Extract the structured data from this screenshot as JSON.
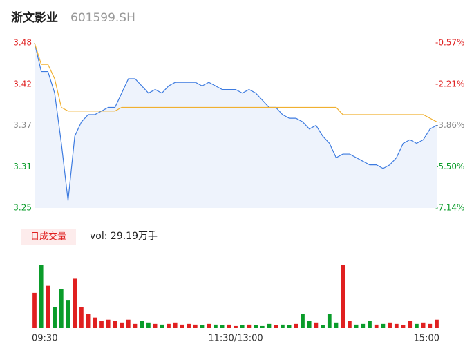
{
  "header": {
    "name": "浙文影业",
    "code": "601599.SH"
  },
  "chart_data": {
    "type": "line",
    "xlim": [
      0,
      240
    ],
    "xticks": [
      {
        "value": 0,
        "label": "09:30"
      },
      {
        "value": 120,
        "label": "11:30/13:00"
      },
      {
        "value": 240,
        "label": "15:00"
      }
    ],
    "ylim": [
      3.25,
      3.48
    ],
    "yticks": [
      {
        "value": 3.48,
        "label": "3.48"
      },
      {
        "value": 3.4225,
        "label": "3.42"
      },
      {
        "value": 3.365,
        "label": "3.37"
      },
      {
        "value": 3.3075,
        "label": "3.31"
      },
      {
        "value": 3.25,
        "label": "3.25"
      }
    ],
    "ytick_colors": [
      "#e02020",
      "#e02020",
      "#888888",
      "#0a9c2a",
      "#0a9c2a"
    ],
    "y2lim": [
      -7.14,
      -0.57
    ],
    "y2ticks": [
      {
        "value": -0.57,
        "label": "-0.57%"
      },
      {
        "value": -2.2125,
        "label": "-2.21%"
      },
      {
        "value": -3.855,
        "label": "-3.86%"
      },
      {
        "value": -5.4975,
        "label": "-5.50%"
      },
      {
        "value": -7.14,
        "label": "-7.14%"
      }
    ],
    "x": [
      0,
      4,
      8,
      12,
      16,
      20,
      24,
      28,
      32,
      36,
      40,
      44,
      48,
      52,
      56,
      60,
      64,
      68,
      72,
      76,
      80,
      84,
      88,
      92,
      96,
      100,
      104,
      108,
      112,
      116,
      120,
      124,
      128,
      132,
      136,
      140,
      144,
      148,
      152,
      156,
      160,
      164,
      168,
      172,
      176,
      180,
      184,
      188,
      192,
      196,
      200,
      204,
      208,
      212,
      216,
      220,
      224,
      228,
      232,
      236,
      240
    ],
    "series": [
      {
        "name": "price",
        "color": "#3d7be0",
        "values": [
          3.48,
          3.44,
          3.44,
          3.41,
          3.34,
          3.26,
          3.35,
          3.37,
          3.38,
          3.38,
          3.385,
          3.39,
          3.39,
          3.41,
          3.43,
          3.43,
          3.42,
          3.41,
          3.415,
          3.41,
          3.42,
          3.425,
          3.425,
          3.425,
          3.425,
          3.42,
          3.425,
          3.42,
          3.415,
          3.415,
          3.415,
          3.41,
          3.415,
          3.41,
          3.4,
          3.39,
          3.39,
          3.38,
          3.375,
          3.375,
          3.37,
          3.36,
          3.365,
          3.35,
          3.34,
          3.32,
          3.325,
          3.325,
          3.32,
          3.315,
          3.31,
          3.31,
          3.305,
          3.31,
          3.32,
          3.34,
          3.345,
          3.34,
          3.345,
          3.36,
          3.365
        ]
      },
      {
        "name": "average",
        "color": "#f0b030",
        "values": [
          3.48,
          3.45,
          3.45,
          3.43,
          3.39,
          3.385,
          3.385,
          3.385,
          3.385,
          3.385,
          3.385,
          3.385,
          3.385,
          3.39,
          3.39,
          3.39,
          3.39,
          3.39,
          3.39,
          3.39,
          3.39,
          3.39,
          3.39,
          3.39,
          3.39,
          3.39,
          3.39,
          3.39,
          3.39,
          3.39,
          3.39,
          3.39,
          3.39,
          3.39,
          3.39,
          3.39,
          3.39,
          3.39,
          3.39,
          3.39,
          3.39,
          3.39,
          3.39,
          3.39,
          3.39,
          3.39,
          3.38,
          3.38,
          3.38,
          3.38,
          3.38,
          3.38,
          3.38,
          3.38,
          3.38,
          3.38,
          3.38,
          3.38,
          3.38,
          3.375,
          3.37
        ]
      }
    ],
    "volume": {
      "button": "日成交量",
      "label": "vol: 29.19万手",
      "up_color": "#e02020",
      "down_color": "#0a9c2a",
      "values": [
        50,
        90,
        60,
        30,
        55,
        40,
        70,
        30,
        20,
        15,
        10,
        12,
        10,
        8,
        12,
        6,
        10,
        8,
        6,
        5,
        6,
        8,
        5,
        6,
        5,
        4,
        6,
        5,
        4,
        5,
        3,
        4,
        5,
        4,
        3,
        6,
        4,
        5,
        4,
        6,
        20,
        10,
        8,
        4,
        20,
        8,
        90,
        10,
        5,
        6,
        10,
        5,
        6,
        8,
        6,
        4,
        10,
        6,
        8,
        6,
        12
      ]
    }
  }
}
